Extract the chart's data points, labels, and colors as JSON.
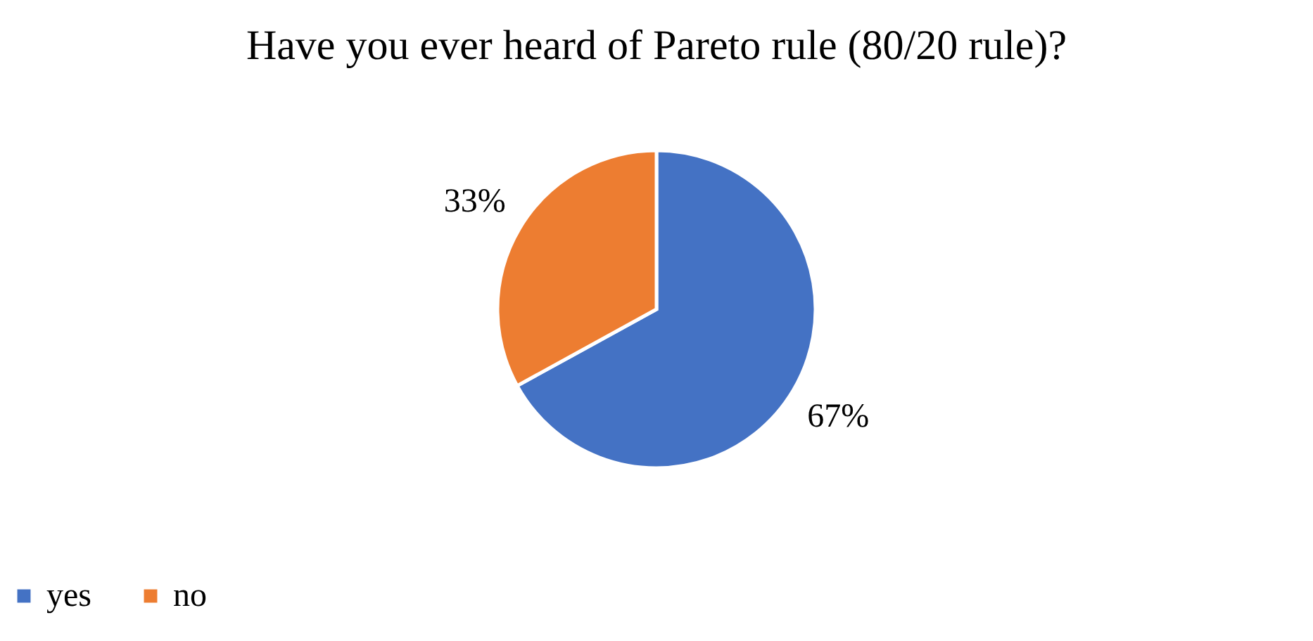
{
  "chart_data": {
    "type": "pie",
    "title": "Have you ever heard of Pareto rule (80/20 rule)?",
    "categories": [
      "yes",
      "no"
    ],
    "values": [
      67,
      33
    ],
    "colors": [
      "#4472c4",
      "#ed7d31"
    ],
    "value_labels": [
      "67%",
      "33%"
    ],
    "legend": "bottom"
  }
}
